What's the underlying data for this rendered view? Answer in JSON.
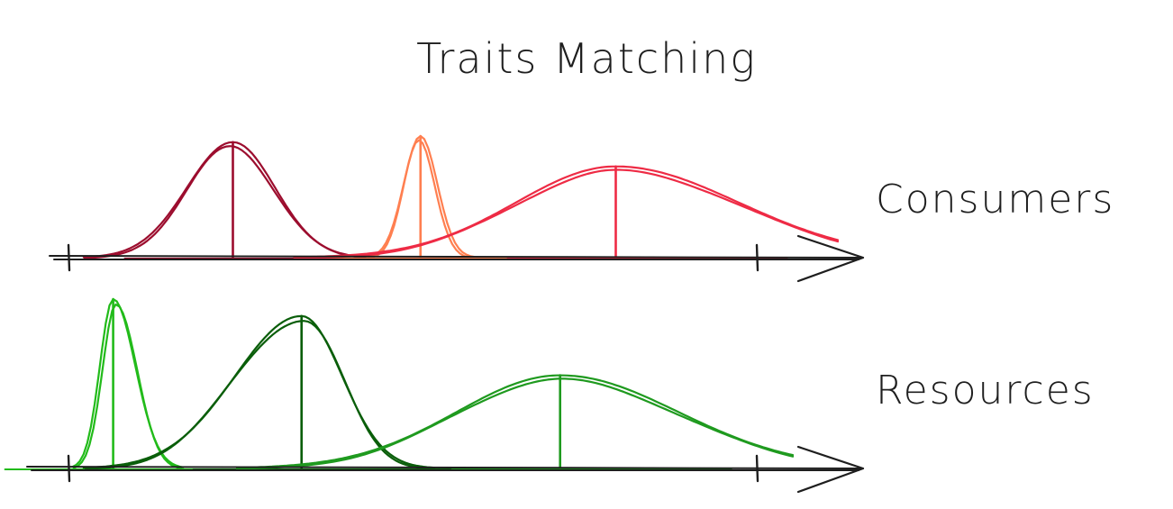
{
  "title": "Traits Matching",
  "rows": [
    {
      "label": "Consumers",
      "curves": [
        {
          "color": "#9c0d2e",
          "peak_height": 0.95,
          "mean": 0.21,
          "sd_left": 0.06,
          "sd_right": 0.055
        },
        {
          "color": "#ff7f50",
          "peak_height": 1.0,
          "mean": 0.455,
          "sd_left": 0.022,
          "sd_right": 0.022
        },
        {
          "color": "#ee2b45",
          "peak_height": 0.75,
          "mean": 0.71,
          "sd_left": 0.13,
          "sd_right": 0.16
        }
      ]
    },
    {
      "label": "Resources",
      "curves": [
        {
          "color": "#22bb1a",
          "peak_height": 1.0,
          "mean": 0.08,
          "sd_left": 0.018,
          "sd_right": 0.03
        },
        {
          "color": "#0a5e0a",
          "peak_height": 0.9,
          "mean": 0.335,
          "sd_left": 0.09,
          "sd_right": 0.055
        },
        {
          "color": "#1f9a1f",
          "peak_height": 0.55,
          "mean": 0.685,
          "sd_left": 0.14,
          "sd_right": 0.16
        }
      ]
    }
  ],
  "colors": {
    "axis": "#1e1e1e",
    "text": "#1e1e1e"
  }
}
